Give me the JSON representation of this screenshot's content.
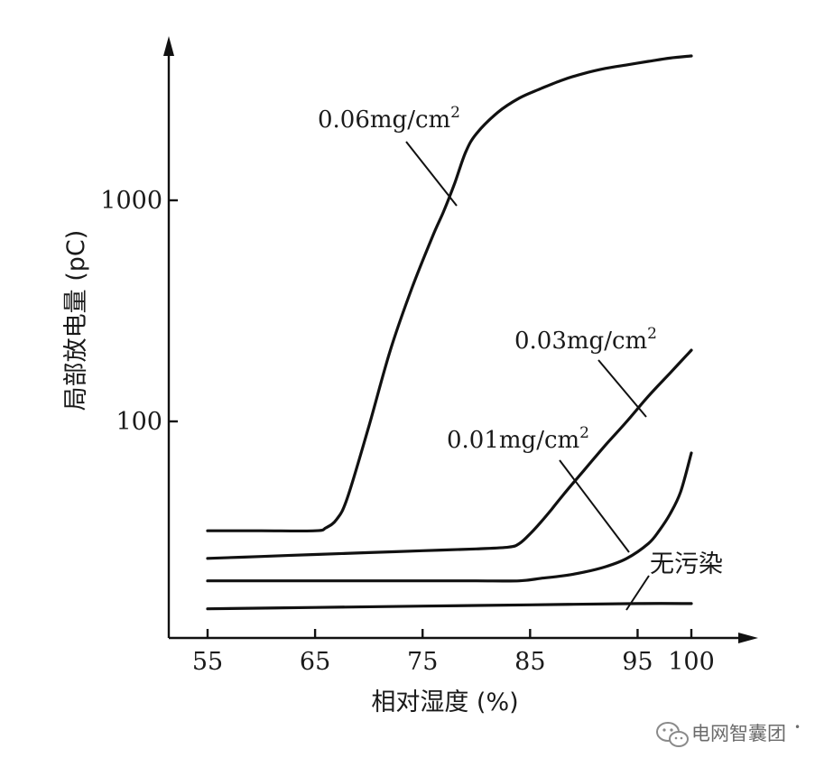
{
  "chart_data": {
    "type": "line",
    "xlabel": "相对湿度 (%)",
    "ylabel": "局部放电量 (pC)",
    "x_ticks": [
      "55",
      "65",
      "75",
      "85",
      "95",
      "100"
    ],
    "y_ticks": [
      "100",
      "1000"
    ],
    "y_scale": "log",
    "grid": false,
    "series": [
      {
        "name": "0.06mg/cm²",
        "label_text": "0.06mg/cm",
        "label_sup": "2",
        "x": [
          55,
          60,
          65,
          66,
          67,
          68,
          70,
          72,
          74,
          76,
          77,
          78,
          79,
          80,
          82,
          84,
          86,
          88,
          90,
          92,
          94,
          96,
          98,
          100
        ],
        "y": [
          32,
          32,
          32,
          33,
          36,
          45,
          95,
          210,
          400,
          700,
          900,
          1200,
          1650,
          2000,
          2500,
          2900,
          3200,
          3500,
          3750,
          3950,
          4100,
          4250,
          4400,
          4500
        ]
      },
      {
        "name": "0.03mg/cm²",
        "label_text": "0.03mg/cm",
        "label_sup": "2",
        "x": [
          55,
          60,
          65,
          70,
          75,
          80,
          83,
          84,
          85,
          86,
          87,
          88,
          90,
          92,
          94,
          96,
          98,
          100
        ],
        "y": [
          24,
          24.5,
          25,
          25.5,
          26,
          26.5,
          27,
          28,
          31,
          35,
          40,
          46,
          60,
          78,
          100,
          130,
          165,
          210
        ]
      },
      {
        "name": "0.01mg/cm²",
        "label_text": "0.01mg/cm",
        "label_sup": "2",
        "x": [
          55,
          60,
          65,
          70,
          75,
          80,
          84,
          86,
          88,
          90,
          92,
          94,
          96,
          97,
          98,
          99,
          100
        ],
        "y": [
          19,
          19,
          19,
          19,
          19,
          19,
          19,
          19.5,
          20,
          20.8,
          22,
          24,
          28,
          32,
          38,
          48,
          72
        ]
      },
      {
        "name": "无污染",
        "x": [
          55,
          65,
          75,
          85,
          95,
          100
        ],
        "y": [
          14.2,
          14.4,
          14.6,
          14.8,
          15.0,
          15.0
        ]
      }
    ]
  },
  "watermark": {
    "icon": "wechat-icon",
    "text": "电网智囊团"
  }
}
